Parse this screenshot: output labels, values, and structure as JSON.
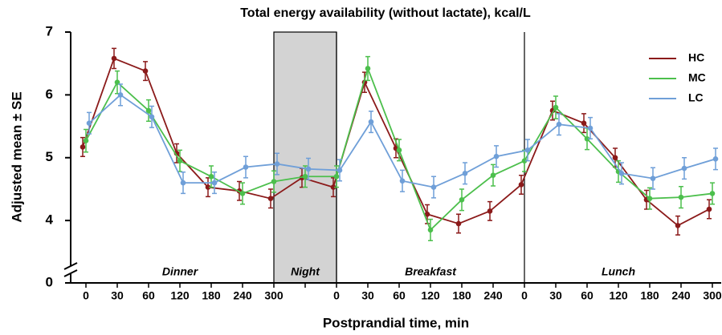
{
  "chart_data": {
    "type": "line",
    "title": "Total energy availability (without lactate), kcal/L",
    "x_label": "Postprandial time, min",
    "y_label": "Adjusted mean ± SE",
    "categories": [
      "0",
      "30",
      "60",
      "120",
      "180",
      "240",
      "300",
      null,
      "0",
      "30",
      "60",
      "120",
      "180",
      "240",
      "0",
      "30",
      "60",
      "120",
      "180",
      "240",
      "300"
    ],
    "sections": [
      {
        "label": "Dinner",
        "from": 0,
        "to": 6
      },
      {
        "label": "Night",
        "from": 6,
        "to": 8,
        "shaded": true
      },
      {
        "label": "Breakfast",
        "from": 8,
        "to": 14
      },
      {
        "label": "Lunch",
        "from": 14,
        "to": 20
      }
    ],
    "series": [
      {
        "name": "HC",
        "color": "#8b1a1a",
        "values": [
          5.17,
          6.58,
          6.38,
          5.07,
          4.53,
          4.47,
          4.35,
          4.68,
          4.53,
          6.2,
          5.15,
          4.1,
          3.95,
          4.15,
          4.57,
          5.75,
          5.55,
          5.0,
          4.33,
          3.92,
          4.18
        ],
        "errors": [
          0.15,
          0.16,
          0.15,
          0.15,
          0.15,
          0.15,
          0.15,
          0.15,
          0.15,
          0.16,
          0.15,
          0.15,
          0.15,
          0.15,
          0.15,
          0.15,
          0.15,
          0.15,
          0.15,
          0.15,
          0.15
        ]
      },
      {
        "name": "MC",
        "color": "#4cbf4c",
        "values": [
          5.27,
          6.2,
          5.75,
          4.95,
          4.7,
          4.43,
          4.62,
          4.7,
          4.7,
          6.42,
          5.12,
          3.85,
          4.33,
          4.72,
          4.95,
          5.8,
          5.3,
          4.78,
          4.35,
          4.37,
          4.43
        ],
        "errors": [
          0.18,
          0.18,
          0.17,
          0.17,
          0.17,
          0.17,
          0.17,
          0.17,
          0.17,
          0.19,
          0.17,
          0.17,
          0.17,
          0.17,
          0.17,
          0.18,
          0.17,
          0.17,
          0.17,
          0.17,
          0.17
        ]
      },
      {
        "name": "LC",
        "color": "#6f9fd8",
        "values": [
          5.55,
          6.0,
          5.65,
          4.6,
          4.6,
          4.85,
          4.9,
          4.82,
          4.8,
          5.57,
          4.63,
          4.53,
          4.75,
          5.02,
          5.12,
          5.53,
          5.47,
          4.75,
          4.67,
          4.83,
          4.98
        ],
        "errors": [
          0.17,
          0.17,
          0.17,
          0.17,
          0.17,
          0.17,
          0.17,
          0.17,
          0.17,
          0.17,
          0.17,
          0.17,
          0.17,
          0.17,
          0.17,
          0.17,
          0.17,
          0.17,
          0.17,
          0.17,
          0.17
        ]
      }
    ],
    "ylim": [
      0,
      7
    ],
    "y_break": [
      0.3,
      3.3
    ],
    "yticks": [
      0,
      4,
      5,
      6,
      7
    ],
    "legend": "upper right"
  }
}
